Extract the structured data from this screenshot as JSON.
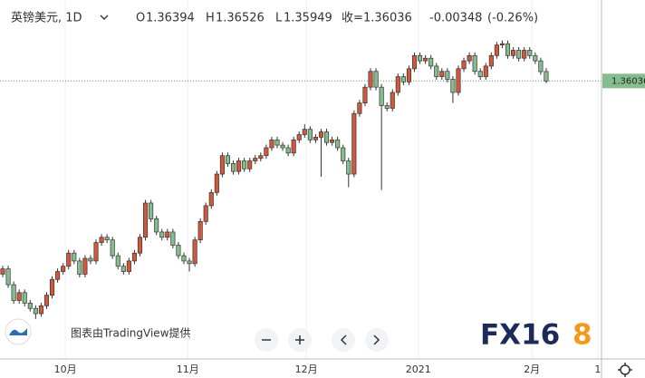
{
  "header": {
    "symbol": "英镑美元, 1D",
    "o": "O",
    "h": "H",
    "l": "L",
    "c": "收=",
    "change": "-0.00348",
    "change_pct": "(-0.26%)"
  },
  "watermark": "图表由TradingView提供",
  "logo_main": "FX16",
  "logo_accent": "8",
  "chart_data": {
    "type": "candlestick",
    "up_color": "#d0593b",
    "down_color": "#86bd8e",
    "grid": true,
    "ylim": [
      1.2548,
      1.3911
    ],
    "xticks": [
      {
        "value": 11.4,
        "label": "10月"
      },
      {
        "value": 33.7,
        "label": "11月"
      },
      {
        "value": 55.3,
        "label": "12月"
      },
      {
        "value": 75.7,
        "label": "2021"
      },
      {
        "value": 96.4,
        "label": "2月"
      },
      {
        "value": 108.4,
        "label": "1"
      }
    ],
    "open": [
      1.287,
      1.289,
      1.283,
      1.277,
      1.28,
      1.276,
      1.274,
      1.272,
      1.275,
      1.279,
      1.285,
      1.288,
      1.29,
      1.295,
      1.292,
      1.287,
      1.293,
      1.292,
      1.299,
      1.301,
      1.3,
      1.294,
      1.29,
      1.288,
      1.292,
      1.295,
      1.301,
      1.314,
      1.308,
      1.303,
      1.301,
      1.303,
      1.298,
      1.294,
      1.292,
      1.291,
      1.3,
      1.307,
      1.313,
      1.318,
      1.325,
      1.332,
      1.329,
      1.326,
      1.33,
      1.327,
      1.33,
      1.331,
      1.332,
      1.335,
      1.338,
      1.336,
      1.335,
      1.333,
      1.338,
      1.34,
      1.342,
      1.338,
      1.339,
      1.341,
      1.337,
      1.338,
      1.335,
      1.33,
      1.325,
      1.348,
      1.352,
      1.358,
      1.364,
      1.358,
      1.351,
      1.35,
      1.356,
      1.362,
      1.36,
      1.365,
      1.37,
      1.368,
      1.369,
      1.366,
      1.362,
      1.364,
      1.361,
      1.356,
      1.365,
      1.368,
      1.37,
      1.364,
      1.362,
      1.366,
      1.37,
      1.374,
      1.3745,
      1.37,
      1.372,
      1.369,
      1.372,
      1.37,
      1.368,
      1.36394
    ],
    "high": [
      1.2902,
      1.2902,
      1.2842,
      1.2812,
      1.2812,
      1.2772,
      1.2752,
      1.2762,
      1.2802,
      1.2862,
      1.2892,
      1.2912,
      1.2962,
      1.2962,
      1.2932,
      1.2942,
      1.2942,
      1.3002,
      1.3022,
      1.3022,
      1.3012,
      1.2952,
      1.2912,
      1.2932,
      1.2962,
      1.3022,
      1.3152,
      1.3152,
      1.3092,
      1.3042,
      1.3042,
      1.3042,
      1.2992,
      1.2952,
      1.2932,
      1.3012,
      1.3082,
      1.3142,
      1.3192,
      1.3262,
      1.3332,
      1.3332,
      1.3302,
      1.3312,
      1.3312,
      1.3312,
      1.3322,
      1.3332,
      1.3362,
      1.3392,
      1.3392,
      1.3372,
      1.3362,
      1.3392,
      1.3412,
      1.344,
      1.3432,
      1.3402,
      1.3422,
      1.3422,
      1.3392,
      1.3392,
      1.3362,
      1.3312,
      1.3492,
      1.3532,
      1.3592,
      1.3652,
      1.3652,
      1.3592,
      1.3522,
      1.3572,
      1.3632,
      1.3632,
      1.3662,
      1.3712,
      1.3712,
      1.3702,
      1.3702,
      1.3672,
      1.3652,
      1.3652,
      1.3622,
      1.3662,
      1.3692,
      1.3712,
      1.3712,
      1.3652,
      1.3672,
      1.3712,
      1.3752,
      1.3757,
      1.3757,
      1.3732,
      1.3732,
      1.3732,
      1.3732,
      1.3712,
      1.3692,
      1.36526
    ],
    "low": [
      1.2858,
      1.2818,
      1.2758,
      1.2758,
      1.2748,
      1.2728,
      1.27,
      1.2708,
      1.2738,
      1.2778,
      1.2838,
      1.2868,
      1.2888,
      1.2908,
      1.2858,
      1.2858,
      1.2908,
      1.2908,
      1.2978,
      1.2988,
      1.2928,
      1.2888,
      1.2868,
      1.2868,
      1.2908,
      1.2938,
      1.2998,
      1.3068,
      1.3018,
      1.2998,
      1.2998,
      1.2968,
      1.2928,
      1.2908,
      1.288,
      1.2898,
      1.2988,
      1.3058,
      1.3118,
      1.3168,
      1.3238,
      1.3278,
      1.3248,
      1.3248,
      1.3258,
      1.3258,
      1.3288,
      1.3298,
      1.3308,
      1.3338,
      1.3348,
      1.3338,
      1.3318,
      1.3318,
      1.3368,
      1.3388,
      1.3368,
      1.3368,
      1.324,
      1.3358,
      1.3358,
      1.3338,
      1.3288,
      1.32,
      1.3238,
      1.3468,
      1.3508,
      1.3568,
      1.3568,
      1.319,
      1.3488,
      1.3488,
      1.3548,
      1.3588,
      1.3588,
      1.3638,
      1.3668,
      1.3668,
      1.3648,
      1.3608,
      1.3608,
      1.3598,
      1.352,
      1.3548,
      1.3638,
      1.3668,
      1.3628,
      1.3608,
      1.3608,
      1.3648,
      1.3688,
      1.3728,
      1.3688,
      1.3688,
      1.3678,
      1.3678,
      1.3688,
      1.3668,
      1.3627,
      1.35949
    ],
    "close": [
      1.289,
      1.283,
      1.277,
      1.28,
      1.276,
      1.274,
      1.272,
      1.275,
      1.279,
      1.285,
      1.288,
      1.29,
      1.295,
      1.292,
      1.287,
      1.293,
      1.292,
      1.299,
      1.301,
      1.3,
      1.294,
      1.29,
      1.288,
      1.292,
      1.295,
      1.301,
      1.314,
      1.308,
      1.303,
      1.301,
      1.303,
      1.298,
      1.294,
      1.292,
      1.291,
      1.3,
      1.307,
      1.313,
      1.318,
      1.325,
      1.332,
      1.329,
      1.326,
      1.33,
      1.327,
      1.33,
      1.331,
      1.332,
      1.335,
      1.338,
      1.336,
      1.335,
      1.333,
      1.338,
      1.34,
      1.342,
      1.338,
      1.339,
      1.341,
      1.337,
      1.338,
      1.335,
      1.33,
      1.325,
      1.348,
      1.352,
      1.358,
      1.364,
      1.358,
      1.351,
      1.35,
      1.356,
      1.362,
      1.36,
      1.365,
      1.37,
      1.368,
      1.369,
      1.366,
      1.362,
      1.364,
      1.361,
      1.356,
      1.365,
      1.368,
      1.37,
      1.364,
      1.362,
      1.366,
      1.37,
      1.374,
      1.3745,
      1.37,
      1.372,
      1.369,
      1.372,
      1.37,
      1.368,
      1.3639,
      1.36036
    ]
  }
}
